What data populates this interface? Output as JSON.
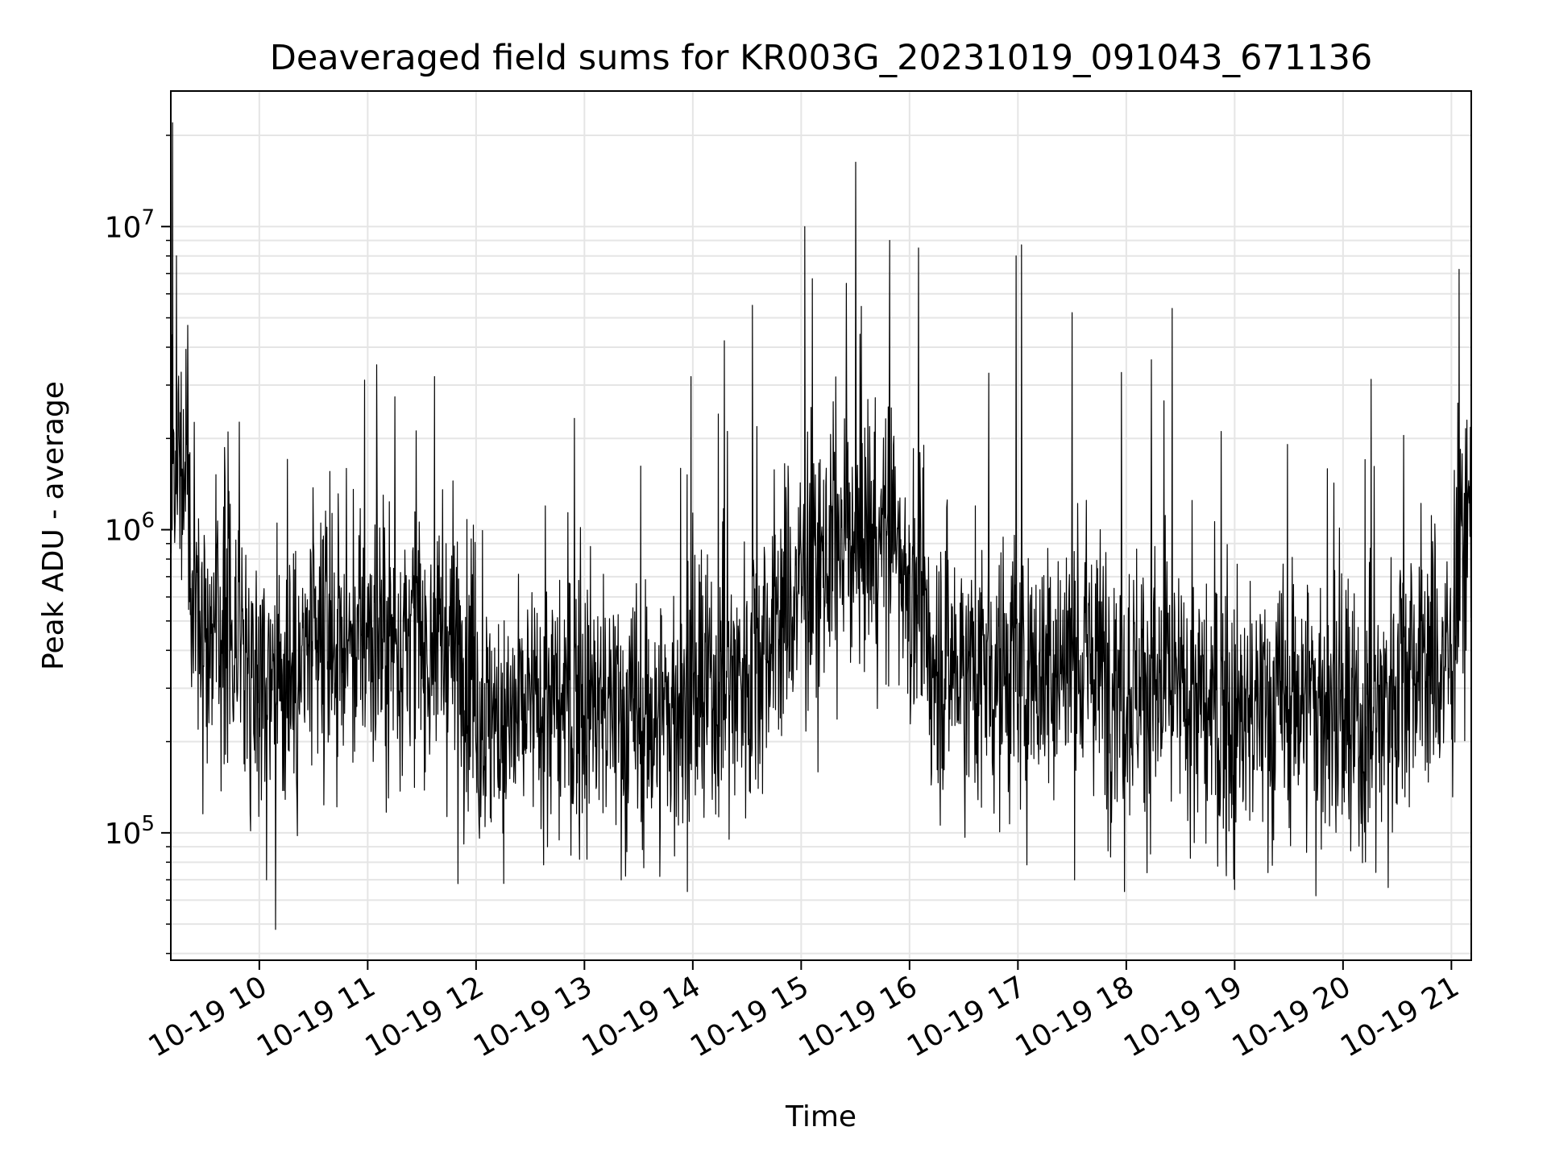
{
  "chart_data": {
    "type": "line",
    "title": "Deaveraged field sums for KR003G_20231019_091043_671136",
    "xlabel": "Time",
    "ylabel": "Peak ADU - average",
    "yscale": "log",
    "grid": true,
    "line_color": "#000000",
    "grid_color": "#e5e5e5",
    "xlim": [
      "2023-10-19 09:11",
      "2023-10-19 21:11"
    ],
    "ylim": [
      38000,
      28000000
    ],
    "x_ticks": [
      {
        "value": "2023-10-19 10:00",
        "label": "10-19 10"
      },
      {
        "value": "2023-10-19 11:00",
        "label": "10-19 11"
      },
      {
        "value": "2023-10-19 12:00",
        "label": "10-19 12"
      },
      {
        "value": "2023-10-19 13:00",
        "label": "10-19 13"
      },
      {
        "value": "2023-10-19 14:00",
        "label": "10-19 14"
      },
      {
        "value": "2023-10-19 15:00",
        "label": "10-19 15"
      },
      {
        "value": "2023-10-19 16:00",
        "label": "10-19 16"
      },
      {
        "value": "2023-10-19 17:00",
        "label": "10-19 17"
      },
      {
        "value": "2023-10-19 18:00",
        "label": "10-19 18"
      },
      {
        "value": "2023-10-19 19:00",
        "label": "10-19 19"
      },
      {
        "value": "2023-10-19 20:00",
        "label": "10-19 20"
      },
      {
        "value": "2023-10-19 21:00",
        "label": "10-19 21"
      }
    ],
    "y_ticks": [
      {
        "value": 100000,
        "base": "10",
        "exp": "5"
      },
      {
        "value": 1000000,
        "base": "10",
        "exp": "6"
      },
      {
        "value": 10000000,
        "base": "10",
        "exp": "7"
      }
    ],
    "series": [
      {
        "typical_level": [
          {
            "x": "2023-10-19 09:11",
            "y": 1800000
          },
          {
            "x": "2023-10-19 09:20",
            "y": 1700000
          },
          {
            "x": "2023-10-19 09:22",
            "y": 500000
          },
          {
            "x": "2023-10-19 09:45",
            "y": 450000
          },
          {
            "x": "2023-10-19 10:15",
            "y": 320000
          },
          {
            "x": "2023-10-19 10:45",
            "y": 430000
          },
          {
            "x": "2023-10-19 11:30",
            "y": 430000
          },
          {
            "x": "2023-10-19 12:00",
            "y": 380000
          },
          {
            "x": "2023-10-19 12:02",
            "y": 230000
          },
          {
            "x": "2023-10-19 13:00",
            "y": 270000
          },
          {
            "x": "2023-10-19 13:30",
            "y": 230000
          },
          {
            "x": "2023-10-19 14:00",
            "y": 260000
          },
          {
            "x": "2023-10-19 14:30",
            "y": 350000
          },
          {
            "x": "2023-10-19 15:00",
            "y": 650000
          },
          {
            "x": "2023-10-19 15:30",
            "y": 1000000
          },
          {
            "x": "2023-10-19 15:55",
            "y": 900000
          },
          {
            "x": "2023-10-19 16:10",
            "y": 380000
          },
          {
            "x": "2023-10-19 17:00",
            "y": 330000
          },
          {
            "x": "2023-10-19 17:30",
            "y": 380000
          },
          {
            "x": "2023-10-19 18:00",
            "y": 330000
          },
          {
            "x": "2023-10-19 19:00",
            "y": 230000
          },
          {
            "x": "2023-10-19 19:40",
            "y": 290000
          },
          {
            "x": "2023-10-19 20:10",
            "y": 200000
          },
          {
            "x": "2023-10-19 20:35",
            "y": 380000
          },
          {
            "x": "2023-10-19 21:00",
            "y": 350000
          },
          {
            "x": "2023-10-19 21:03",
            "y": 700000
          },
          {
            "x": "2023-10-19 21:11",
            "y": 1200000
          }
        ],
        "spread_decades": 0.42,
        "notable_peaks": [
          {
            "x": "2023-10-19 09:12",
            "y": 22000000
          },
          {
            "x": "2023-10-19 11:05",
            "y": 3500000
          },
          {
            "x": "2023-10-19 11:37",
            "y": 3200000
          },
          {
            "x": "2023-10-19 13:59",
            "y": 3200000
          },
          {
            "x": "2023-10-19 14:33",
            "y": 5500000
          },
          {
            "x": "2023-10-19 15:02",
            "y": 10000000
          },
          {
            "x": "2023-10-19 15:25",
            "y": 6500000
          },
          {
            "x": "2023-10-19 15:49",
            "y": 9000000
          },
          {
            "x": "2023-10-19 16:05",
            "y": 8500000
          },
          {
            "x": "2023-10-19 16:59",
            "y": 8000000
          },
          {
            "x": "2023-10-19 17:02",
            "y": 8700000
          },
          {
            "x": "2023-10-19 17:30",
            "y": 5200000
          },
          {
            "x": "2023-10-19 21:11",
            "y": 4000000
          }
        ],
        "notable_dips": [
          {
            "x": "2023-10-19 10:09",
            "y": 48000
          },
          {
            "x": "2023-10-19 10:04",
            "y": 70000
          },
          {
            "x": "2023-10-19 11:50",
            "y": 68000
          },
          {
            "x": "2023-10-19 13:57",
            "y": 64000
          },
          {
            "x": "2023-10-19 17:59",
            "y": 64000
          },
          {
            "x": "2023-10-19 19:00",
            "y": 65000
          },
          {
            "x": "2023-10-19 19:45",
            "y": 62000
          },
          {
            "x": "2023-10-19 20:25",
            "y": 66000
          }
        ]
      }
    ]
  }
}
